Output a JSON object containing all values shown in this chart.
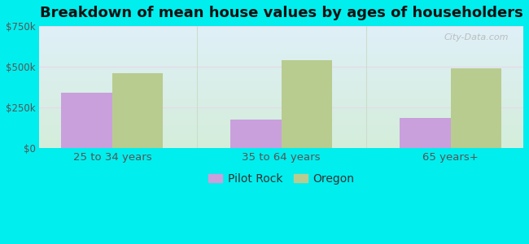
{
  "title": "Breakdown of mean house values by ages of householders",
  "categories": [
    "25 to 34 years",
    "35 to 64 years",
    "65 years+"
  ],
  "pilot_rock_values": [
    340000,
    175000,
    185000
  ],
  "oregon_values": [
    460000,
    540000,
    490000
  ],
  "pilot_rock_color": "#c9a0dc",
  "oregon_color": "#b8cc90",
  "ylim": [
    0,
    750000
  ],
  "yticks": [
    0,
    250000,
    500000,
    750000
  ],
  "ytick_labels": [
    "$0",
    "$250k",
    "$500k",
    "$750k"
  ],
  "background_color": "#00eeee",
  "plot_bg_topleft": "#d8f4e8",
  "plot_bg_topright": "#e8f4f8",
  "plot_bg_bottom": "#d8f0e0",
  "legend_labels": [
    "Pilot Rock",
    "Oregon"
  ],
  "bar_width": 0.3,
  "title_fontsize": 13,
  "watermark": "City-Data.com"
}
